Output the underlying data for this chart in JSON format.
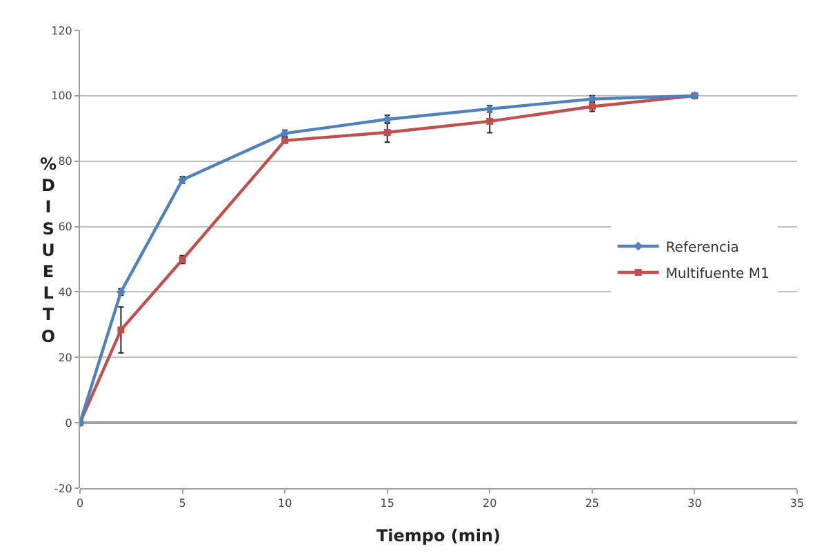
{
  "chart_data": {
    "type": "line",
    "xlabel": "Tiempo (min)",
    "ylabel": "%DISUELTO",
    "x": [
      0,
      2,
      5,
      10,
      15,
      20,
      25,
      30
    ],
    "series": [
      {
        "name": "Referencia",
        "color": "#4f81bd",
        "marker": "diamond",
        "values": [
          0,
          40,
          74.3,
          88.5,
          92.8,
          96,
          99,
          100
        ],
        "errors": [
          null,
          1,
          1,
          1,
          1.2,
          1,
          1,
          0.5
        ]
      },
      {
        "name": "Multifuente M1",
        "color": "#c0504d",
        "marker": "square",
        "values": [
          0,
          28.4,
          49.9,
          86.3,
          88.8,
          92.2,
          96.7,
          100
        ],
        "errors": [
          null,
          7,
          1.2,
          0.5,
          3,
          3.5,
          1.5,
          0.5
        ]
      }
    ],
    "xlim": [
      0,
      35
    ],
    "xticks": [
      0,
      5,
      10,
      15,
      20,
      25,
      30,
      35
    ],
    "ylim": [
      -20,
      120
    ],
    "yticks": [
      -20,
      0,
      20,
      40,
      60,
      80,
      100,
      120
    ],
    "grid": "y",
    "legend": "right",
    "line_style": "solid"
  }
}
